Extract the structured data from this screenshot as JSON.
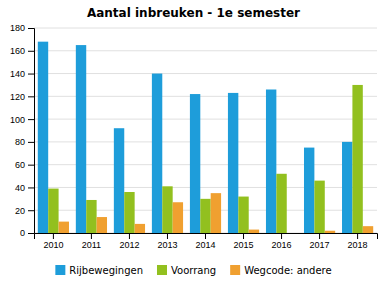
{
  "chart_data": {
    "type": "bar",
    "title": "Aantal inbreuken - 1e semester",
    "categories": [
      "2010",
      "2011",
      "2012",
      "2013",
      "2014",
      "2015",
      "2016",
      "2017",
      "2018"
    ],
    "series": [
      {
        "name": "Rijbewegingen",
        "color": "#1e9dda",
        "values": [
          168,
          165,
          92,
          140,
          122,
          123,
          126,
          75,
          80
        ]
      },
      {
        "name": "Voorrang",
        "color": "#92c01f",
        "values": [
          39,
          29,
          36,
          41,
          30,
          32,
          52,
          46,
          130
        ]
      },
      {
        "name": "Wegcode: andere",
        "color": "#f0a030",
        "values": [
          10,
          14,
          8,
          27,
          35,
          3,
          0,
          2,
          6
        ]
      }
    ],
    "ylim": [
      0,
      180
    ],
    "yticks": [
      0,
      20,
      40,
      60,
      80,
      100,
      120,
      140,
      160,
      180
    ],
    "grid": true,
    "legend": "bottom"
  }
}
